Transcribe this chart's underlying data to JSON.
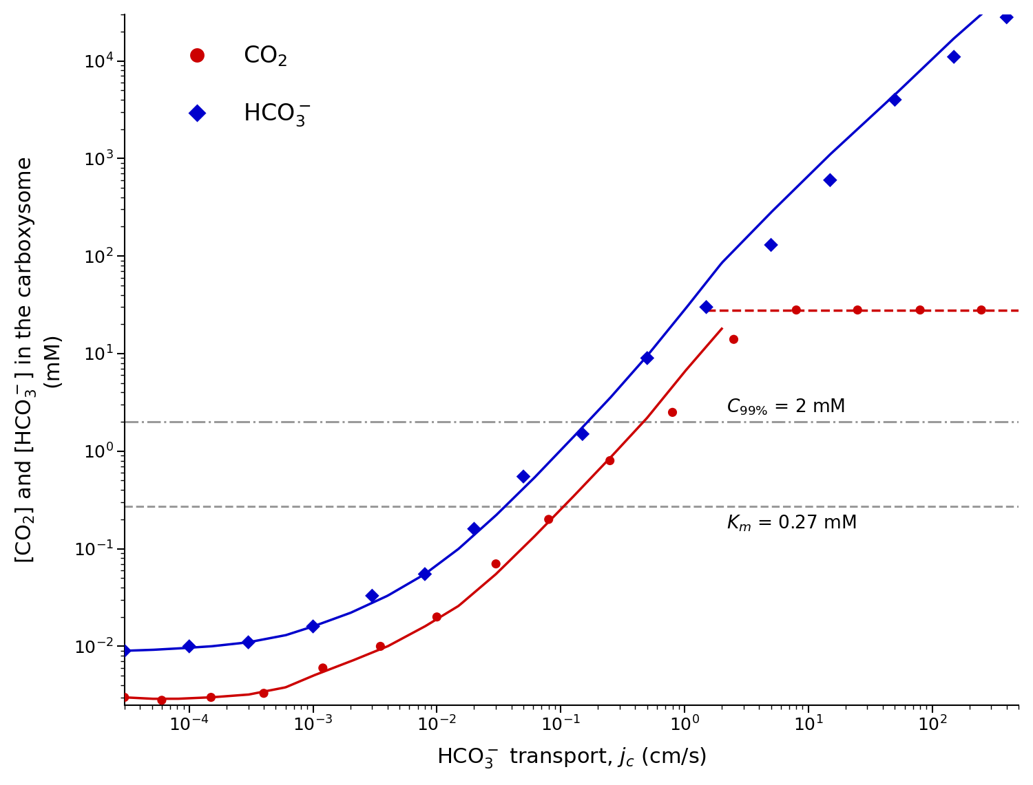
{
  "xlabel": "HCO$_3^-$ transport, $j_c$ (cm/s)",
  "ylabel": "[CO$_2$] and [HCO$_3^-$] in the carboxysome\n(mM)",
  "legend_co2": "CO$_2$",
  "legend_hco3": "HCO$_3^-$",
  "c99_label": "$C_{99\\%}$ = 2 mM",
  "km_label": "$K_m$ = 0.27 mM",
  "c99_value": 2.0,
  "km_value": 0.27,
  "co2_color": "#cc0000",
  "hco3_color": "#0000cc",
  "gray_color": "#888888",
  "red_dashed_value": 28.0,
  "xlim": [
    3e-05,
    500
  ],
  "ylim": [
    0.0025,
    30000.0
  ],
  "background_color": "#ffffff",
  "co2_curve_x": [
    3e-05,
    5e-05,
    8e-05,
    0.00015,
    0.0003,
    0.0006,
    0.001,
    0.002,
    0.004,
    0.008,
    0.015,
    0.03,
    0.06,
    0.12,
    0.25,
    0.5,
    1.0,
    2.0,
    4.0,
    500
  ],
  "co2_curve_y": [
    0.003,
    0.0029,
    0.0029,
    0.003,
    0.0032,
    0.0038,
    0.005,
    0.007,
    0.01,
    0.016,
    0.026,
    0.055,
    0.13,
    0.32,
    0.85,
    2.2,
    6.5,
    18.0,
    28.0,
    28.0
  ],
  "hco3_curve_x": [
    3e-05,
    5e-05,
    8e-05,
    0.00015,
    0.0003,
    0.0006,
    0.001,
    0.002,
    0.004,
    0.008,
    0.015,
    0.03,
    0.06,
    0.12,
    0.25,
    0.5,
    1.0,
    2.0,
    5.0,
    15.0,
    50.0,
    150.0,
    500.0
  ],
  "hco3_curve_y": [
    0.009,
    0.0092,
    0.0095,
    0.01,
    0.011,
    0.013,
    0.016,
    0.022,
    0.033,
    0.055,
    0.1,
    0.22,
    0.52,
    1.3,
    3.5,
    9.5,
    28.0,
    85.0,
    280.0,
    1100.0,
    4500.0,
    17000.0,
    65000.0
  ],
  "co2_scatter_x": [
    3e-05,
    6e-05,
    0.00015,
    0.0004,
    0.0012,
    0.0035,
    0.01,
    0.03,
    0.08,
    0.25,
    0.8,
    2.5,
    8.0,
    25.0,
    80.0,
    250.0
  ],
  "co2_scatter_y": [
    0.003,
    0.0028,
    0.003,
    0.0033,
    0.006,
    0.01,
    0.02,
    0.07,
    0.2,
    0.8,
    2.5,
    14.0,
    28.0,
    28.0,
    28.0,
    28.0
  ],
  "hco3_scatter_x": [
    3e-05,
    0.0001,
    0.0003,
    0.001,
    0.003,
    0.008,
    0.02,
    0.05,
    0.15,
    0.5,
    1.5,
    5.0,
    15.0,
    50.0,
    150.0,
    400.0
  ],
  "hco3_scatter_y": [
    0.009,
    0.01,
    0.011,
    0.016,
    0.033,
    0.055,
    0.16,
    0.55,
    1.5,
    9.0,
    30.0,
    130.0,
    600.0,
    4000.0,
    11000.0,
    28000.0
  ]
}
